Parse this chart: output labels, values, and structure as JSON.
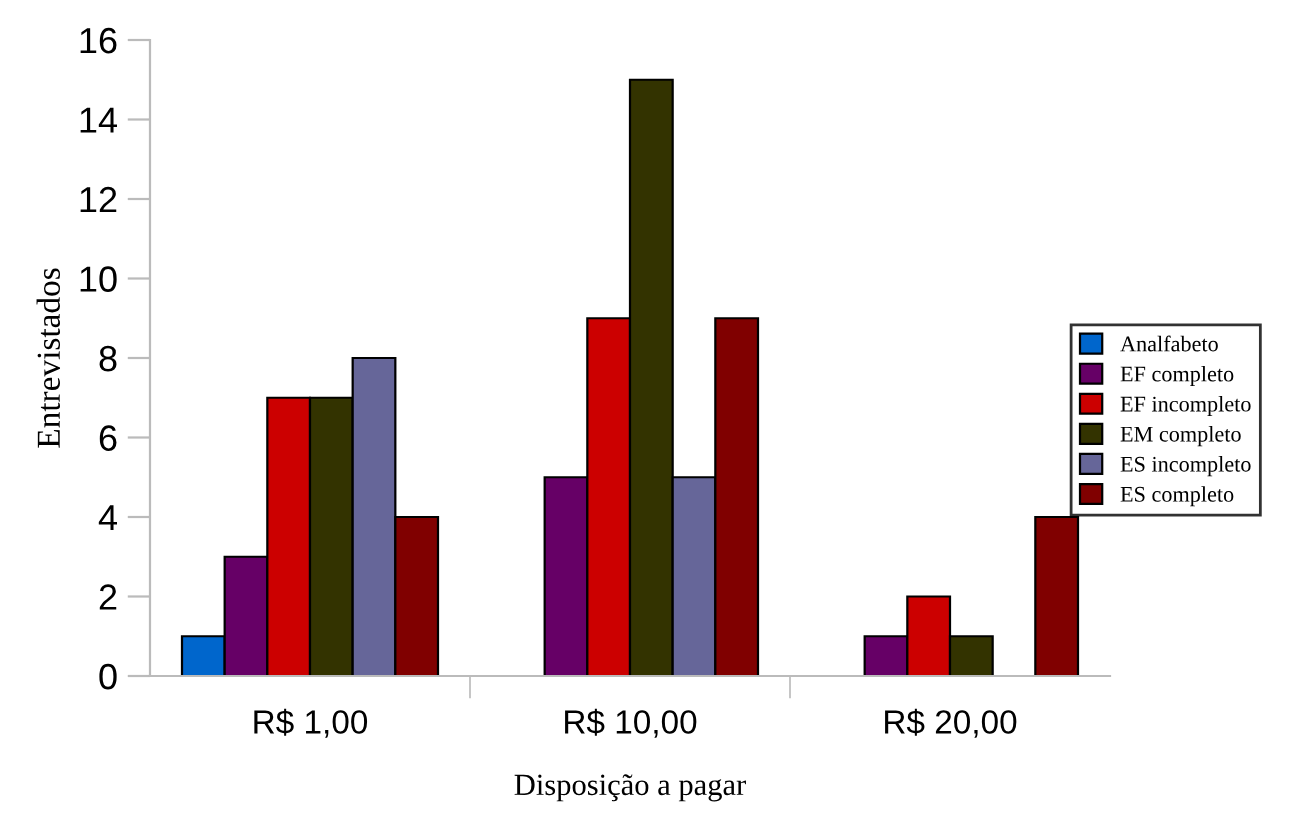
{
  "chart_data": {
    "type": "bar",
    "xlabel": "Disposição a pagar",
    "ylabel": "Entrevistados",
    "categories": [
      "R$ 1,00",
      "R$ 10,00",
      "R$ 20,00"
    ],
    "series": [
      {
        "name": "Analfabeto",
        "color": "#0066cc",
        "values": [
          1,
          null,
          null
        ]
      },
      {
        "name": "EF completo",
        "color": "#660066",
        "values": [
          3,
          5,
          1
        ]
      },
      {
        "name": "EF incompleto",
        "color": "#cc0000",
        "values": [
          7,
          9,
          2
        ]
      },
      {
        "name": "EM completo",
        "color": "#333300",
        "values": [
          7,
          15,
          1
        ]
      },
      {
        "name": "ES incompleto",
        "color": "#666699",
        "values": [
          8,
          5,
          null
        ]
      },
      {
        "name": "ES completo",
        "color": "#800000",
        "values": [
          4,
          9,
          4
        ]
      }
    ],
    "ylim": [
      0,
      16
    ],
    "yticks": [
      0,
      2,
      4,
      6,
      8,
      10,
      12,
      14,
      16
    ],
    "grid": false,
    "legend": "right"
  }
}
